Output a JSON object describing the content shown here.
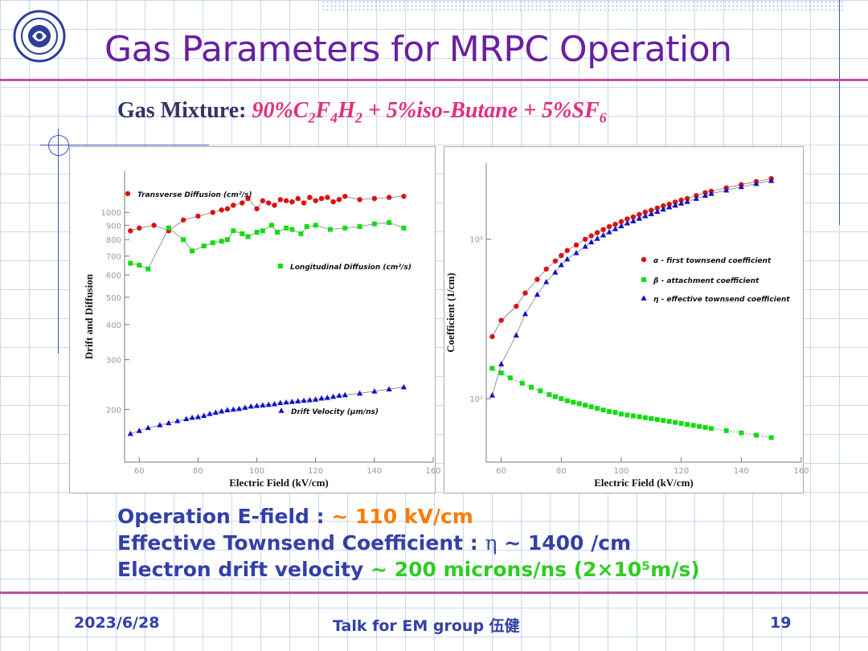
{
  "slide": {
    "title": "Gas Parameters for MRPC Operation",
    "mixture_label": "Gas Mixture:",
    "mixture_value": "90%C2F4H2 + 5%iso-Butane + 5%SF6",
    "bullets": {
      "efield_label": "Operation E-field : ",
      "efield_value": "~ 110 kV/cm",
      "townsend_label": "Effective Townsend Coefficient : ",
      "townsend_symbol": "η",
      "townsend_value": "~ 1400 /cm",
      "drift_label": "Electron drift velocity ",
      "drift_value": "~ 200 microns/ns (2×10⁵m/s)"
    },
    "footer": {
      "date": "2023/6/28",
      "talk": "Talk for EM group  伍健",
      "page": "19"
    },
    "logo_icon": "university-seal-icon",
    "colors": {
      "title": "#6a1fa2",
      "accent": "#e0307a",
      "bullet_blue": "#3340a8",
      "orange": "#ff7a00",
      "green": "#2fcc22",
      "red_marker": "#dd1111",
      "green_marker": "#11dd11",
      "blue_marker": "#1111cc"
    }
  },
  "chart_data": [
    {
      "type": "scatter",
      "xlabel": "Electric Field (kV/cm)",
      "ylabel": "Drift and Diffusion",
      "xlim": [
        55,
        160
      ],
      "ylim": [
        130,
        1400
      ],
      "yscale": "log",
      "x_ticks": [
        "60",
        "80",
        "100",
        "120",
        "140",
        "160"
      ],
      "y_ticks": [
        "200",
        "300",
        "400",
        "500",
        "600",
        "700",
        "800",
        "900",
        "1000"
      ],
      "legend": [
        {
          "label": "Transverse Diffusion (cm²/s)",
          "marker": "circle",
          "color": "#dd1111"
        },
        {
          "label": "Longitudinal Diffusion (cm²/s)",
          "marker": "square",
          "color": "#11dd11"
        },
        {
          "label": "Drift Velocity (μm/ns)",
          "marker": "triangle",
          "color": "#1111cc"
        }
      ],
      "series": [
        {
          "name": "Transverse Diffusion (cm²/s)",
          "x": [
            57,
            60,
            65,
            70,
            75,
            80,
            85,
            88,
            90,
            92,
            95,
            97,
            100,
            102,
            104,
            106,
            108,
            110,
            112,
            114,
            116,
            118,
            120,
            122,
            124,
            126,
            128,
            130,
            135,
            140,
            145,
            150
          ],
          "y": [
            860,
            880,
            900,
            860,
            940,
            970,
            1000,
            1020,
            1030,
            1060,
            1080,
            1120,
            1030,
            1100,
            1080,
            1060,
            1110,
            1100,
            1090,
            1120,
            1080,
            1130,
            1100,
            1120,
            1130,
            1090,
            1110,
            1140,
            1110,
            1120,
            1130,
            1140
          ]
        },
        {
          "name": "Longitudinal Diffusion (cm²/s)",
          "x": [
            57,
            60,
            63,
            70,
            75,
            78,
            82,
            85,
            88,
            90,
            92,
            95,
            97,
            100,
            102,
            105,
            107,
            110,
            112,
            115,
            117,
            120,
            125,
            130,
            135,
            140,
            145,
            150
          ],
          "y": [
            660,
            650,
            630,
            880,
            800,
            730,
            760,
            780,
            790,
            800,
            860,
            840,
            820,
            850,
            860,
            900,
            850,
            880,
            870,
            840,
            890,
            900,
            870,
            880,
            890,
            910,
            920,
            880
          ]
        },
        {
          "name": "Drift Velocity (μm/ns)",
          "x": [
            57,
            60,
            63,
            67,
            70,
            73,
            76,
            78,
            80,
            82,
            84,
            86,
            88,
            90,
            92,
            94,
            96,
            98,
            100,
            102,
            104,
            106,
            108,
            110,
            112,
            114,
            116,
            118,
            120,
            122,
            124,
            126,
            128,
            130,
            135,
            140,
            145,
            150
          ],
          "y": [
            164,
            168,
            172,
            176,
            179,
            182,
            185,
            187,
            188,
            190,
            193,
            195,
            197,
            199,
            200,
            201,
            203,
            205,
            206,
            207,
            208,
            209,
            211,
            212,
            213,
            214,
            215,
            216,
            217,
            219,
            220,
            222,
            224,
            225,
            228,
            232,
            236,
            240
          ]
        }
      ]
    },
    {
      "type": "scatter",
      "xlabel": "Electric Field (kV/cm)",
      "ylabel": "Coefficient (1/cm)",
      "xlim": [
        55,
        160
      ],
      "ylim": [
        40,
        3000
      ],
      "yscale": "log",
      "x_ticks": [
        "60",
        "80",
        "100",
        "120",
        "140",
        "160"
      ],
      "y_ticks": [
        "10²",
        "10³"
      ],
      "legend": [
        {
          "label": "α - first townsend coefficient",
          "marker": "circle",
          "color": "#dd1111"
        },
        {
          "label": "β - attachment coefficient",
          "marker": "square",
          "color": "#11dd11"
        },
        {
          "label": "η - effective townsend coefficient",
          "marker": "triangle",
          "color": "#1111cc"
        }
      ],
      "series": [
        {
          "name": "α - first townsend coefficient",
          "x": [
            57,
            60,
            65,
            68,
            72,
            75,
            78,
            80,
            82,
            85,
            88,
            90,
            92,
            94,
            96,
            98,
            100,
            102,
            104,
            106,
            108,
            110,
            112,
            114,
            116,
            118,
            120,
            122,
            125,
            128,
            130,
            135,
            140,
            145,
            150
          ],
          "y": [
            245,
            310,
            380,
            460,
            560,
            650,
            730,
            790,
            850,
            920,
            1000,
            1050,
            1100,
            1150,
            1200,
            1240,
            1290,
            1340,
            1380,
            1430,
            1480,
            1520,
            1570,
            1620,
            1660,
            1710,
            1760,
            1800,
            1880,
            1960,
            2000,
            2100,
            2200,
            2300,
            2400
          ]
        },
        {
          "name": "β - attachment coefficient",
          "x": [
            57,
            60,
            63,
            67,
            70,
            73,
            76,
            78,
            80,
            82,
            84,
            86,
            88,
            90,
            92,
            94,
            96,
            98,
            100,
            102,
            104,
            106,
            108,
            110,
            112,
            114,
            116,
            118,
            120,
            122,
            124,
            126,
            128,
            130,
            135,
            140,
            145,
            150
          ],
          "y": [
            155,
            145,
            135,
            125,
            118,
            112,
            106,
            103,
            100,
            97,
            95,
            93,
            91,
            89,
            87,
            85,
            83,
            82,
            80,
            79,
            78,
            77,
            76,
            75,
            74,
            73,
            72,
            71,
            70,
            69,
            68,
            67,
            66,
            65,
            63,
            61,
            59,
            57
          ]
        },
        {
          "name": "η - effective townsend coefficient",
          "x": [
            57,
            60,
            65,
            68,
            72,
            75,
            78,
            80,
            82,
            85,
            88,
            90,
            92,
            94,
            96,
            98,
            100,
            102,
            104,
            106,
            108,
            110,
            112,
            114,
            116,
            118,
            120,
            122,
            125,
            128,
            130,
            135,
            140,
            145,
            150
          ],
          "y": [
            105,
            165,
            250,
            340,
            450,
            540,
            620,
            690,
            750,
            820,
            900,
            960,
            1010,
            1060,
            1110,
            1160,
            1210,
            1260,
            1300,
            1350,
            1400,
            1440,
            1490,
            1540,
            1590,
            1630,
            1680,
            1720,
            1800,
            1880,
            1930,
            2030,
            2130,
            2230,
            2330
          ]
        }
      ]
    }
  ]
}
